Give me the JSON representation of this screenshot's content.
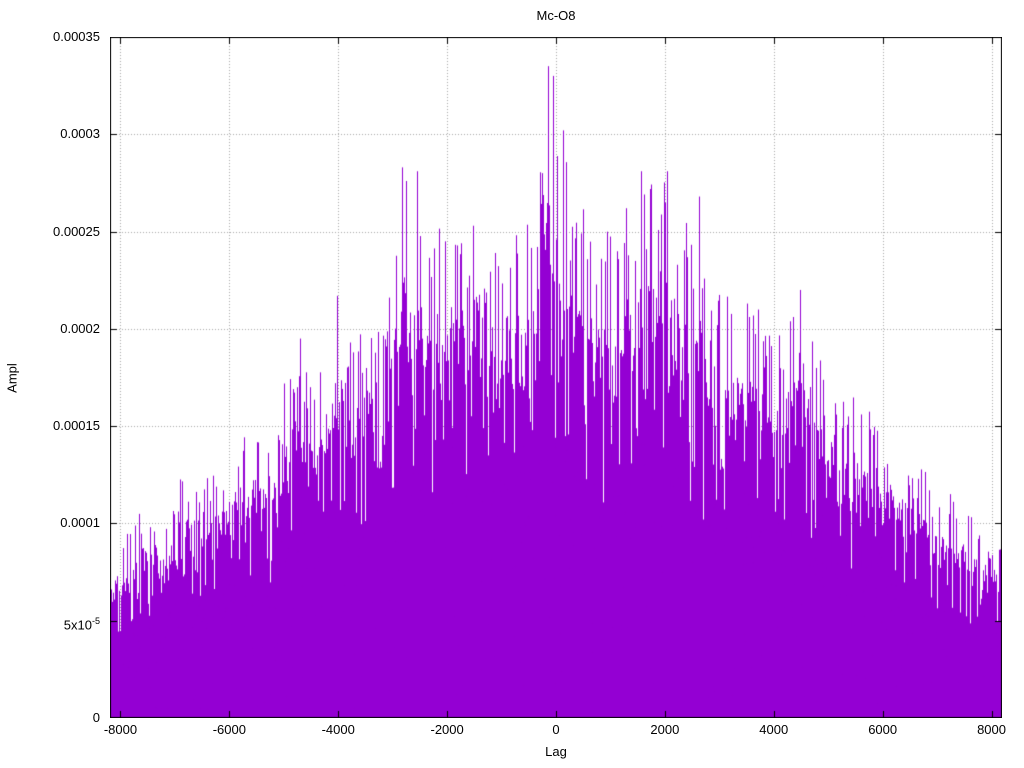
{
  "chart_data": {
    "type": "impulse",
    "title": "Mc-O8",
    "xlabel": "Lag",
    "ylabel": "Ampl",
    "xlim": [
      -8192,
      8192
    ],
    "ylim": [
      0,
      0.00035
    ],
    "grid": true,
    "legend": "none",
    "background_color": "#ffffff",
    "series_color": "#9400D3",
    "grid_color": "#a8a8a8",
    "border_color": "#000000",
    "x_ticks": [
      {
        "value": -8000,
        "label": "-8000"
      },
      {
        "value": -6000,
        "label": "-6000"
      },
      {
        "value": -4000,
        "label": "-4000"
      },
      {
        "value": -2000,
        "label": "-2000"
      },
      {
        "value": 0,
        "label": "0"
      },
      {
        "value": 2000,
        "label": "2000"
      },
      {
        "value": 4000,
        "label": "4000"
      },
      {
        "value": 6000,
        "label": "6000"
      },
      {
        "value": 8000,
        "label": "8000"
      }
    ],
    "y_ticks": [
      {
        "value": 0,
        "label": "0"
      },
      {
        "value": 5e-05,
        "label": "5x10",
        "sup": "-5"
      },
      {
        "value": 0.0001,
        "label": "0.0001"
      },
      {
        "value": 0.00015,
        "label": "0.00015"
      },
      {
        "value": 0.0002,
        "label": "0.0002"
      },
      {
        "value": 0.00025,
        "label": "0.00025"
      },
      {
        "value": 0.0003,
        "label": "0.0003"
      },
      {
        "value": 0.00035,
        "label": "0.00035"
      }
    ],
    "n_points": 16384,
    "seed": 1337,
    "envelope": {
      "lags": [
        -8192,
        -8000,
        -7600,
        -7200,
        -6800,
        -6400,
        -6000,
        -5600,
        -5200,
        -4800,
        -4400,
        -4000,
        -3600,
        -3200,
        -2800,
        -2400,
        -2000,
        -1600,
        -1200,
        -800,
        -400,
        -150,
        0,
        200,
        600,
        1000,
        1400,
        1600,
        2000,
        2400,
        2800,
        3200,
        3600,
        4000,
        4500,
        5000,
        5500,
        6000,
        6500,
        7000,
        7500,
        8000,
        8192
      ],
      "ampl": [
        8.5e-05,
        9e-05,
        0.00011,
        0.000105,
        0.00013,
        0.000125,
        0.00014,
        0.00015,
        0.00015,
        0.000195,
        0.000175,
        0.00022,
        0.000205,
        0.00021,
        0.000283,
        0.00024,
        0.00026,
        0.00025,
        0.00024,
        0.000245,
        0.00027,
        0.000335,
        0.00031,
        0.000285,
        0.00026,
        0.00025,
        0.000265,
        0.00028,
        0.000281,
        0.000255,
        0.00023,
        0.000215,
        0.00022,
        0.000195,
        0.00022,
        0.00017,
        0.000165,
        0.000155,
        0.000135,
        0.00012,
        0.00011,
        9.5e-05,
        8.5e-05
      ],
      "note": "approximate upper envelope of impulse amplitudes read from the plot"
    },
    "peaks": [
      {
        "lag": -150,
        "ampl": 0.000335
      },
      {
        "lag": -60,
        "ampl": 0.00033
      },
      {
        "lag": 130,
        "ampl": 0.000302
      },
      {
        "lag": -2820,
        "ampl": 0.000283
      },
      {
        "lag": -2560,
        "ampl": 0.000281
      },
      {
        "lag": 1560,
        "ampl": 0.000281
      },
      {
        "lag": 2040,
        "ampl": 0.000281
      },
      {
        "lag": 2620,
        "ampl": 0.000268
      },
      {
        "lag": 1280,
        "ampl": 0.000262
      },
      {
        "lag": -1530,
        "ampl": 0.000253
      },
      {
        "lag": 4480,
        "ampl": 0.00022
      },
      {
        "lag": -4700,
        "ampl": 0.000195
      }
    ]
  }
}
